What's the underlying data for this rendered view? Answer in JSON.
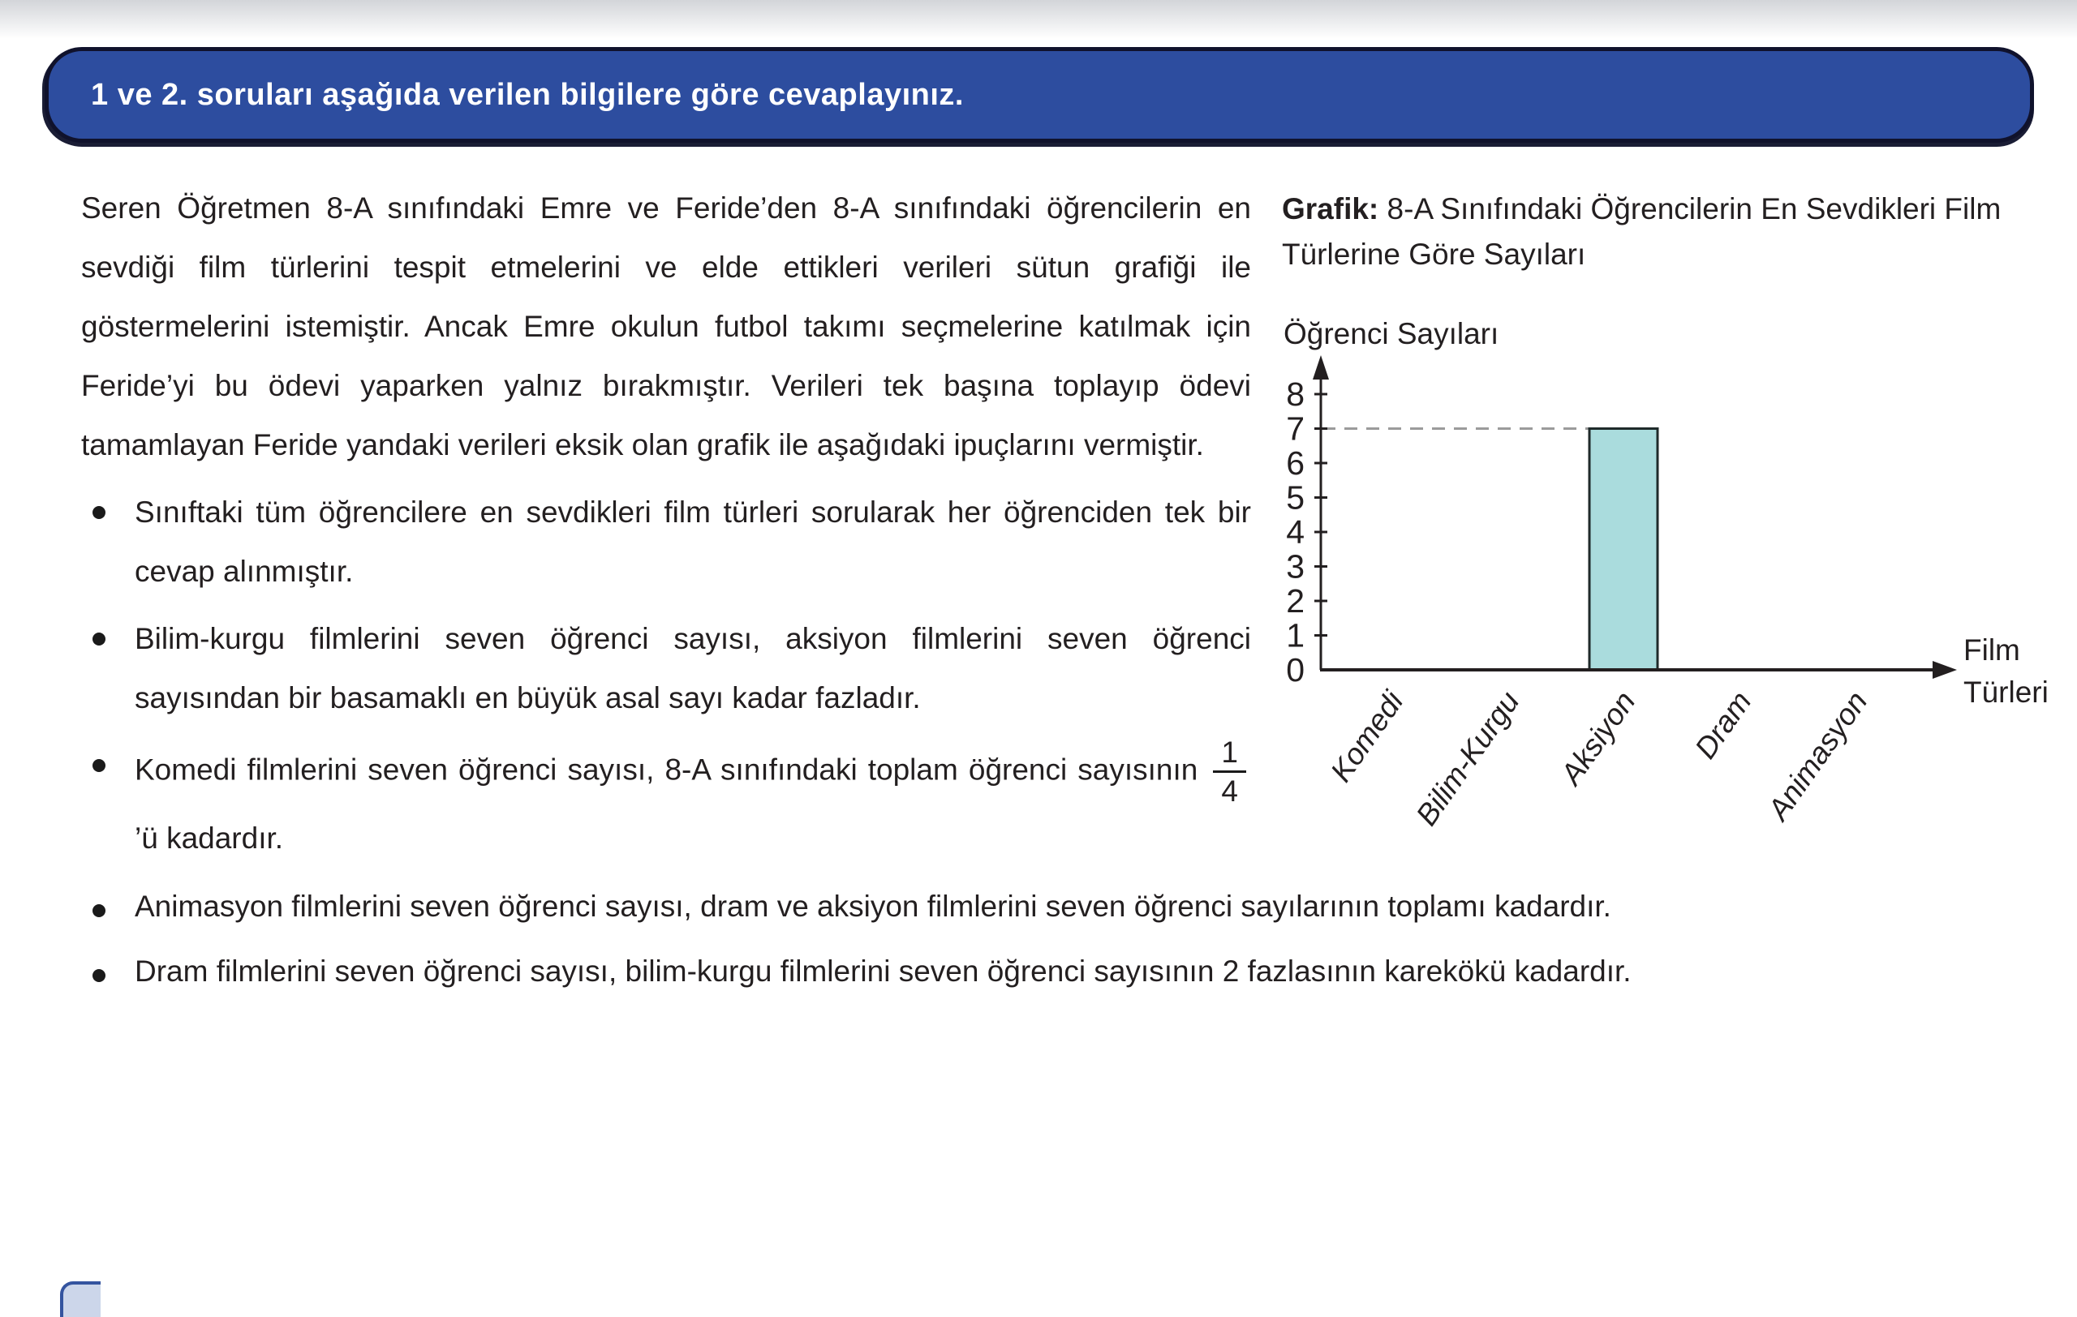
{
  "banner": {
    "text": "1 ve 2. soruları aşağıda verilen bilgilere göre cevaplayınız."
  },
  "paragraph": "Seren Öğretmen 8-A sınıfındaki Emre ve Feride’den 8-A sınıfındaki öğrencilerin en sevdiği film türlerini tespit etmelerini ve elde ettikleri verileri sütun grafiği ile göstermelerini istemiştir. Ancak Emre okulun futbol takımı seçmelerine katılmak için Feride’yi bu ödevi yaparken yalnız bırakmıştır. Verileri tek başına toplayıp ödevi tamamlayan Feride yandaki verileri eksik olan grafik ile aşağıdaki ipuçlarını vermiştir.",
  "bullets": [
    "Sınıftaki tüm öğrencilere en sevdikleri film türleri sorularak her öğrenciden tek bir cevap alınmıştır.",
    "Bilim-kurgu filmlerini seven öğrenci sayısı, aksiyon filmlerini seven öğrenci sayısından bir basamaklı en büyük asal sayı kadar fazladır."
  ],
  "fraction_bullet": {
    "before": "Komedi filmlerini seven öğrenci sayısı, 8-A sınıfındaki toplam öğrenci sayısının ",
    "numerator": "1",
    "denominator": "4",
    "after": "’ü kadardır."
  },
  "full_bullets": [
    "Animasyon filmlerini seven öğrenci sayısı, dram ve aksiyon filmlerini seven öğrenci sayılarının toplamı kadardır.",
    "Dram filmlerini seven öğrenci sayısı, bilim-kurgu filmlerini seven öğrenci sayısının 2 fazlasının karekökü kadardır."
  ],
  "chart": {
    "title_prefix": "Grafik:",
    "title_rest": "8-A Sınıfındaki Öğrencilerin En Sevdikleri Film Türlerine Göre Sayıları"
  },
  "chart_data": {
    "type": "bar",
    "title": "Grafik: 8-A Sınıfındaki Öğrencilerin En Sevdikleri Film Türlerine Göre Sayıları",
    "categories": [
      "Komedi",
      "Bilim-Kurgu",
      "Aksiyon",
      "Dram",
      "Animasyon"
    ],
    "values": [
      null,
      null,
      7,
      null,
      null
    ],
    "xlabel": "Film Türleri",
    "ylabel": "Öğrenci Sayıları",
    "ylim": [
      0,
      8
    ],
    "yticks": [
      0,
      1,
      2,
      3,
      4,
      5,
      6,
      7,
      8
    ],
    "dashed_guide_y": 7,
    "bar_color": "#aadcdd",
    "bar_border_color": "#1f2a2a",
    "axis_color": "#231f20",
    "guide_color": "#9b9b9b",
    "grid": false,
    "legend": false
  }
}
